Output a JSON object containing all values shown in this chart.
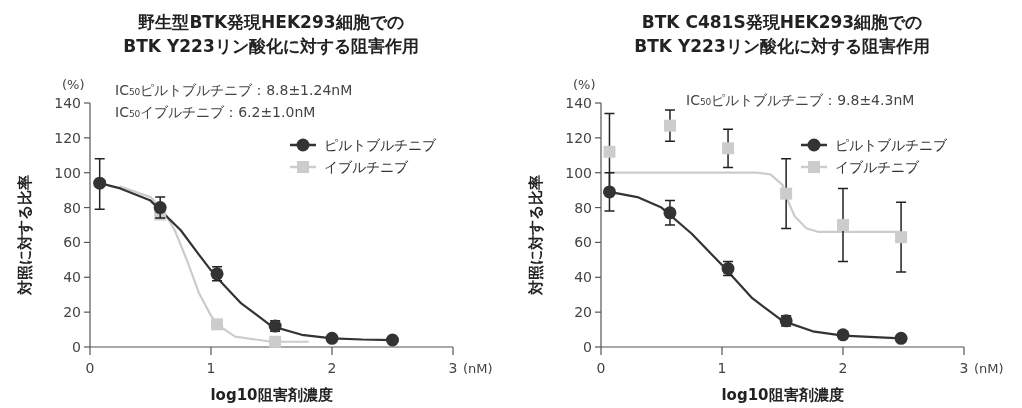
{
  "chart_data": [
    {
      "type": "scatter",
      "title": "野生型BTK発現HEK293細胞での\nBTK Y223リン酸化に対する阻害作用",
      "xlabel": "log10阻害剤濃度",
      "ylabel": "対照に対する比率",
      "annotations": [
        "(%)",
        "IC₅₀ピルトブルチニブ：8.8±1.24nM",
        "IC₅₀イブルチニブ：6.2±1.0nM",
        "(nM)"
      ],
      "x": [
        0.08,
        0.58,
        1.05,
        1.53,
        2.0,
        2.5
      ],
      "xlim": [
        0,
        3
      ],
      "xticks": [
        0,
        1,
        2,
        3
      ],
      "ylim": [
        0,
        140
      ],
      "yticks": [
        0,
        20,
        40,
        60,
        80,
        100,
        120,
        140
      ],
      "grid": false,
      "legend": "top right",
      "line_style": "solid",
      "series": [
        {
          "type": "line",
          "color": "#cccccc",
          "marker": "none",
          "x": [
            0.25,
            0.5,
            0.6,
            0.7,
            0.8,
            0.9,
            1.0,
            1.05,
            1.2,
            1.5,
            1.8
          ],
          "values": [
            92,
            86,
            79,
            67,
            50,
            31,
            18,
            13,
            6,
            3,
            3
          ]
        },
        {
          "type": "line",
          "color": "#333333",
          "marker": "none",
          "x": [
            0.08,
            0.25,
            0.5,
            0.75,
            0.9,
            1.0,
            1.1,
            1.25,
            1.5,
            1.75,
            2.0,
            2.25,
            2.5
          ],
          "values": [
            94,
            91,
            84,
            67,
            53,
            44,
            36,
            25,
            12,
            7,
            5,
            4.3,
            4
          ]
        },
        {
          "name": "ピルトブルチニブ",
          "color": "#333333",
          "marker": "circle",
          "values": [
            94,
            80,
            42,
            12,
            5,
            4
          ],
          "errors": [
            [
              79,
              108
            ],
            6,
            4,
            3,
            null,
            null
          ]
        },
        {
          "name": "イブルチニブ",
          "color": "#cccccc",
          "marker": "square",
          "values": [
            null,
            76,
            13,
            3,
            null,
            null
          ]
        }
      ]
    },
    {
      "type": "scatter",
      "title": "BTK C481S発現HEK293細胞での\nBTK Y223リン酸化に対する阻害作用",
      "xlabel": "log10阻害剤濃度",
      "ylabel": "対照に対する比率",
      "annotations": [
        "(%)",
        "IC₅₀ピルトブルチニブ：9.8±4.3nM",
        "(nM)"
      ],
      "x": [
        0.07,
        0.57,
        1.05,
        1.53,
        2.0,
        2.48
      ],
      "xlim": [
        0,
        3
      ],
      "xticks": [
        0,
        1,
        2,
        3
      ],
      "ylim": [
        0,
        140
      ],
      "yticks": [
        0,
        20,
        40,
        60,
        80,
        100,
        120,
        140
      ],
      "grid": false,
      "legend": "top right",
      "line_style": "solid",
      "series": [
        {
          "type": "line",
          "color": "#cccccc",
          "marker": "none",
          "x": [
            0.07,
            1.3,
            1.4,
            1.5,
            1.55,
            1.6,
            1.7,
            1.8,
            2.48
          ],
          "values": [
            100,
            100,
            99,
            93,
            83,
            75,
            68,
            66,
            66
          ]
        },
        {
          "type": "line",
          "color": "#333333",
          "marker": "none",
          "x": [
            0.07,
            0.3,
            0.5,
            0.75,
            1.0,
            1.25,
            1.5,
            1.75,
            2.0,
            2.48
          ],
          "values": [
            89,
            86,
            80,
            65,
            47,
            28,
            15,
            9,
            6.5,
            5
          ]
        },
        {
          "name": "ピルトブルチニブ",
          "color": "#333333",
          "marker": "circle",
          "values": [
            89,
            77,
            45,
            15,
            7,
            5
          ],
          "errors": [
            11,
            7,
            4,
            3,
            null,
            null
          ]
        },
        {
          "name": "イブルチニブ",
          "color": "#cccccc",
          "marker": "square",
          "values": [
            112,
            127,
            114,
            88,
            70,
            63
          ],
          "errors": [
            22,
            9,
            11,
            20,
            21,
            20
          ]
        }
      ]
    }
  ]
}
